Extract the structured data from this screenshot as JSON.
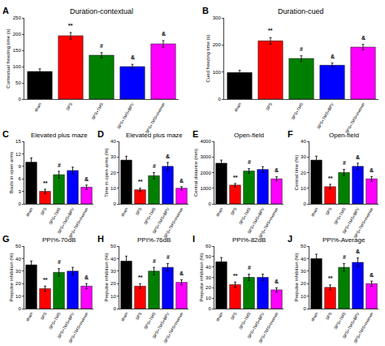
{
  "chart_data": [
    {
      "type": "bar",
      "panel_label": "A",
      "title": "Duration-contextual",
      "ylabel": "Contextual freezing time (s)",
      "categories": [
        "sham",
        "SPS",
        "SPS+TMS",
        "SPS+TMS+BPV",
        "SPS+TMS+memen"
      ],
      "values": [
        85,
        195,
        135,
        100,
        170
      ],
      "errors": [
        8,
        10,
        8,
        7,
        10
      ],
      "colors": [
        "#000000",
        "#ff0000",
        "#008000",
        "#0000ff",
        "#ff00ff"
      ],
      "ylim": [
        0,
        250
      ],
      "yticks": [
        0,
        50,
        100,
        150,
        200,
        250
      ],
      "grid": false,
      "annotations": [
        {
          "category": "SPS",
          "text": "**"
        },
        {
          "category": "SPS+TMS",
          "text": "#"
        },
        {
          "category": "SPS+TMS+BPV",
          "text": "&"
        },
        {
          "category": "SPS+TMS+memen",
          "text": "&"
        }
      ]
    },
    {
      "type": "bar",
      "panel_label": "B",
      "title": "Duration-cued",
      "ylabel": "Cued freezing time (s)",
      "categories": [
        "sham",
        "SPS",
        "SPS+TMS",
        "SPS+TMS+BPV",
        "SPS+TMS+memen"
      ],
      "values": [
        98,
        215,
        150,
        125,
        192
      ],
      "errors": [
        8,
        12,
        10,
        8,
        10
      ],
      "colors": [
        "#000000",
        "#ff0000",
        "#008000",
        "#0000ff",
        "#ff00ff"
      ],
      "ylim": [
        0,
        300
      ],
      "yticks": [
        0,
        100,
        200,
        300
      ],
      "grid": false,
      "annotations": [
        {
          "category": "SPS",
          "text": "**"
        },
        {
          "category": "SPS+TMS",
          "text": "#"
        },
        {
          "category": "SPS+TMS+BPV",
          "text": "&"
        },
        {
          "category": "SPS+TMS+memen",
          "text": "&"
        }
      ]
    },
    {
      "type": "bar",
      "panel_label": "C",
      "title": "Elevated plus maze",
      "ylabel": "Bouts in open arms",
      "categories": [
        "sham",
        "SPS",
        "SPS+TMS",
        "SPS+TMS+BPV",
        "SPS+TMS+memen"
      ],
      "values": [
        10,
        3,
        7,
        8,
        4
      ],
      "errors": [
        1,
        0.5,
        0.8,
        0.8,
        0.5
      ],
      "colors": [
        "#000000",
        "#ff0000",
        "#008000",
        "#0000ff",
        "#ff00ff"
      ],
      "ylim": [
        0,
        15
      ],
      "yticks": [
        0,
        3,
        6,
        9,
        12,
        15
      ],
      "grid": false,
      "annotations": [
        {
          "category": "SPS",
          "text": "**"
        },
        {
          "category": "SPS+TMS",
          "text": "#"
        },
        {
          "category": "SPS+TMS+memen",
          "text": "&"
        }
      ]
    },
    {
      "type": "bar",
      "panel_label": "D",
      "title": "Elevated plus maze",
      "ylabel": "Time in open arms (%)",
      "categories": [
        "sham",
        "SPS",
        "SPS+TMS",
        "SPS+TMS+BPV",
        "SPS+TMS+memen"
      ],
      "values": [
        28,
        9,
        18,
        24,
        10
      ],
      "errors": [
        2.5,
        1,
        2,
        2.5,
        1
      ],
      "colors": [
        "#000000",
        "#ff0000",
        "#008000",
        "#0000ff",
        "#ff00ff"
      ],
      "ylim": [
        0,
        40
      ],
      "yticks": [
        0,
        10,
        20,
        30,
        40
      ],
      "grid": false,
      "annotations": [
        {
          "category": "SPS",
          "text": "**"
        },
        {
          "category": "SPS+TMS",
          "text": "#"
        },
        {
          "category": "SPS+TMS+BPV",
          "text": "&"
        },
        {
          "category": "SPS+TMS+memen",
          "text": "&"
        }
      ]
    },
    {
      "type": "bar",
      "panel_label": "E",
      "title": "Open-field",
      "ylabel": "Central distance (mm)",
      "categories": [
        "sham",
        "SPS",
        "SPS+TMS",
        "SPS+TMS+BPV",
        "SPS+TMS+memen"
      ],
      "values": [
        2600,
        1200,
        2100,
        2200,
        1600
      ],
      "errors": [
        200,
        100,
        150,
        180,
        130
      ],
      "colors": [
        "#000000",
        "#ff0000",
        "#008000",
        "#0000ff",
        "#ff00ff"
      ],
      "ylim": [
        0,
        4000
      ],
      "yticks": [
        0,
        1000,
        2000,
        3000,
        4000
      ],
      "grid": false,
      "annotations": [
        {
          "category": "SPS",
          "text": "**"
        },
        {
          "category": "SPS+TMS",
          "text": "#"
        },
        {
          "category": "SPS+TMS+memen",
          "text": "&"
        }
      ]
    },
    {
      "type": "bar",
      "panel_label": "F",
      "title": "Open-field",
      "ylabel": "Central time (%)",
      "categories": [
        "sham",
        "SPS",
        "SPS+TMS",
        "SPS+TMS+BPV",
        "SPS+TMS+memen"
      ],
      "values": [
        28,
        11,
        20,
        24,
        16
      ],
      "errors": [
        2.5,
        1.5,
        2,
        2,
        1.5
      ],
      "colors": [
        "#000000",
        "#ff0000",
        "#008000",
        "#0000ff",
        "#ff00ff"
      ],
      "ylim": [
        0,
        40
      ],
      "yticks": [
        0,
        10,
        20,
        30,
        40
      ],
      "grid": false,
      "annotations": [
        {
          "category": "SPS",
          "text": "**"
        },
        {
          "category": "SPS+TMS",
          "text": "#"
        },
        {
          "category": "SPS+TMS+BPV",
          "text": "&"
        },
        {
          "category": "SPS+TMS+memen",
          "text": "&"
        }
      ]
    },
    {
      "type": "bar",
      "panel_label": "G",
      "title": "PPI%-70dB",
      "ylabel": "Prepulse inhibition (%)",
      "categories": [
        "sham",
        "SPS",
        "SPS+TMS",
        "SPS+TMS+BPV",
        "SPS+TMS+memen"
      ],
      "values": [
        35,
        16,
        29,
        30,
        18
      ],
      "errors": [
        3,
        2,
        3,
        3,
        2
      ],
      "colors": [
        "#000000",
        "#ff0000",
        "#008000",
        "#0000ff",
        "#ff00ff"
      ],
      "ylim": [
        0,
        50
      ],
      "yticks": [
        0,
        10,
        20,
        30,
        40,
        50
      ],
      "grid": false,
      "annotations": [
        {
          "category": "SPS",
          "text": "**"
        },
        {
          "category": "SPS+TMS",
          "text": "#"
        },
        {
          "category": "SPS+TMS+memen",
          "text": "&"
        }
      ]
    },
    {
      "type": "bar",
      "panel_label": "H",
      "title": "PPI%-76dB",
      "ylabel": "Prepulse inhibition (%)",
      "categories": [
        "sham",
        "SPS",
        "SPS+TMS",
        "SPS+TMS+BPV",
        "SPS+TMS+memen"
      ],
      "values": [
        38,
        18,
        30,
        33,
        21
      ],
      "errors": [
        4,
        2,
        3,
        3,
        2
      ],
      "colors": [
        "#000000",
        "#ff0000",
        "#008000",
        "#0000ff",
        "#ff00ff"
      ],
      "ylim": [
        0,
        50
      ],
      "yticks": [
        0,
        10,
        20,
        30,
        40,
        50
      ],
      "grid": false,
      "annotations": [
        {
          "category": "SPS",
          "text": "**"
        },
        {
          "category": "SPS+TMS",
          "text": "#"
        },
        {
          "category": "SPS+TMS+BPV",
          "text": "#"
        },
        {
          "category": "SPS+TMS+memen",
          "text": "&"
        }
      ]
    },
    {
      "type": "bar",
      "panel_label": "I",
      "title": "PPI%-82dB",
      "ylabel": "Prepulse inhibition (%)",
      "categories": [
        "sham",
        "SPS",
        "SPS+TMS",
        "SPS+TMS+BPV",
        "SPS+TMS+memen"
      ],
      "values": [
        45,
        23,
        30,
        30,
        18
      ],
      "errors": [
        4,
        2.5,
        3,
        3,
        2
      ],
      "colors": [
        "#000000",
        "#ff0000",
        "#008000",
        "#0000ff",
        "#ff00ff"
      ],
      "ylim": [
        0,
        60
      ],
      "yticks": [
        0,
        10,
        20,
        30,
        40,
        50,
        60
      ],
      "grid": false,
      "annotations": [
        {
          "category": "SPS",
          "text": "**"
        },
        {
          "category": "SPS+TMS",
          "text": "#"
        },
        {
          "category": "SPS+TMS+memen",
          "text": "&"
        }
      ]
    },
    {
      "type": "bar",
      "panel_label": "J",
      "title": "PPI%-Average",
      "ylabel": "Prepulse inhibition (%)",
      "categories": [
        "sham",
        "SPS",
        "SPS+TMS",
        "SPS+TMS+BPV",
        "SPS+TMS+memen"
      ],
      "values": [
        40,
        17,
        33,
        37,
        20
      ],
      "errors": [
        3.5,
        2,
        3,
        3.5,
        2
      ],
      "colors": [
        "#000000",
        "#ff0000",
        "#008000",
        "#0000ff",
        "#ff00ff"
      ],
      "ylim": [
        0,
        50
      ],
      "yticks": [
        0,
        10,
        20,
        30,
        40,
        50
      ],
      "grid": false,
      "annotations": [
        {
          "category": "SPS",
          "text": "**"
        },
        {
          "category": "SPS+TMS",
          "text": "#"
        },
        {
          "category": "SPS+TMS+BPV",
          "text": "&"
        },
        {
          "category": "SPS+TMS+memen",
          "text": "&"
        }
      ]
    }
  ]
}
